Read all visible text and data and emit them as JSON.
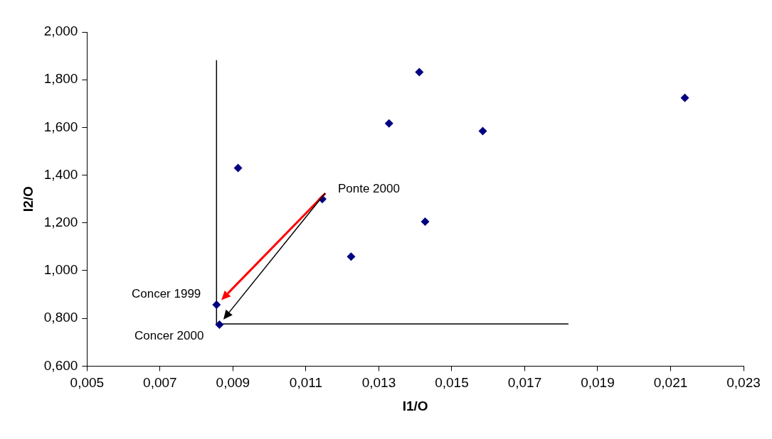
{
  "chart_data": {
    "type": "scatter",
    "xlabel": "I1/O",
    "ylabel": "I2/O",
    "marker": "diamond",
    "xlim": [
      0.005,
      0.023
    ],
    "ylim": [
      0.6,
      2.0
    ],
    "xticks": [
      {
        "value": 0.005,
        "label": "0,005"
      },
      {
        "value": 0.007,
        "label": "0,007"
      },
      {
        "value": 0.009,
        "label": "0,009"
      },
      {
        "value": 0.011,
        "label": "0,011"
      },
      {
        "value": 0.013,
        "label": "0,013"
      },
      {
        "value": 0.015,
        "label": "0,015"
      },
      {
        "value": 0.017,
        "label": "0,017"
      },
      {
        "value": 0.019,
        "label": "0,019"
      },
      {
        "value": 0.021,
        "label": "0,021"
      },
      {
        "value": 0.023,
        "label": "0,023"
      }
    ],
    "yticks": [
      {
        "value": 0.6,
        "label": "0,600"
      },
      {
        "value": 0.8,
        "label": "0,800"
      },
      {
        "value": 1.0,
        "label": "1,000"
      },
      {
        "value": 1.2,
        "label": "1,200"
      },
      {
        "value": 1.4,
        "label": "1,400"
      },
      {
        "value": 1.6,
        "label": "1,600"
      },
      {
        "value": 1.8,
        "label": "1,800"
      },
      {
        "value": 2.0,
        "label": "2,000"
      }
    ],
    "series": [
      {
        "color": "#000080",
        "x": [
          0.00914,
          0.01411,
          0.01328,
          0.01585,
          0.02139,
          0.01145,
          0.01427,
          0.01224,
          0.00855,
          0.00863
        ],
        "values": [
          1.43,
          1.832,
          1.617,
          1.585,
          1.724,
          1.3,
          1.205,
          1.059,
          0.857,
          0.774
        ]
      },
      {
        "type": "line",
        "color": "#000000",
        "marker": "none",
        "x": [
          0.00855,
          0.00855,
          0.0182
        ],
        "values": [
          1.88,
          0.777,
          0.777
        ]
      }
    ],
    "annotations": [
      {
        "text": "Ponte 2000",
        "x": 0.01145,
        "y": 1.3
      },
      {
        "text": "Concer 1999",
        "x": 0.00855,
        "y": 0.857
      },
      {
        "text": "Concer 2000",
        "x": 0.00863,
        "y": 0.774
      }
    ]
  }
}
